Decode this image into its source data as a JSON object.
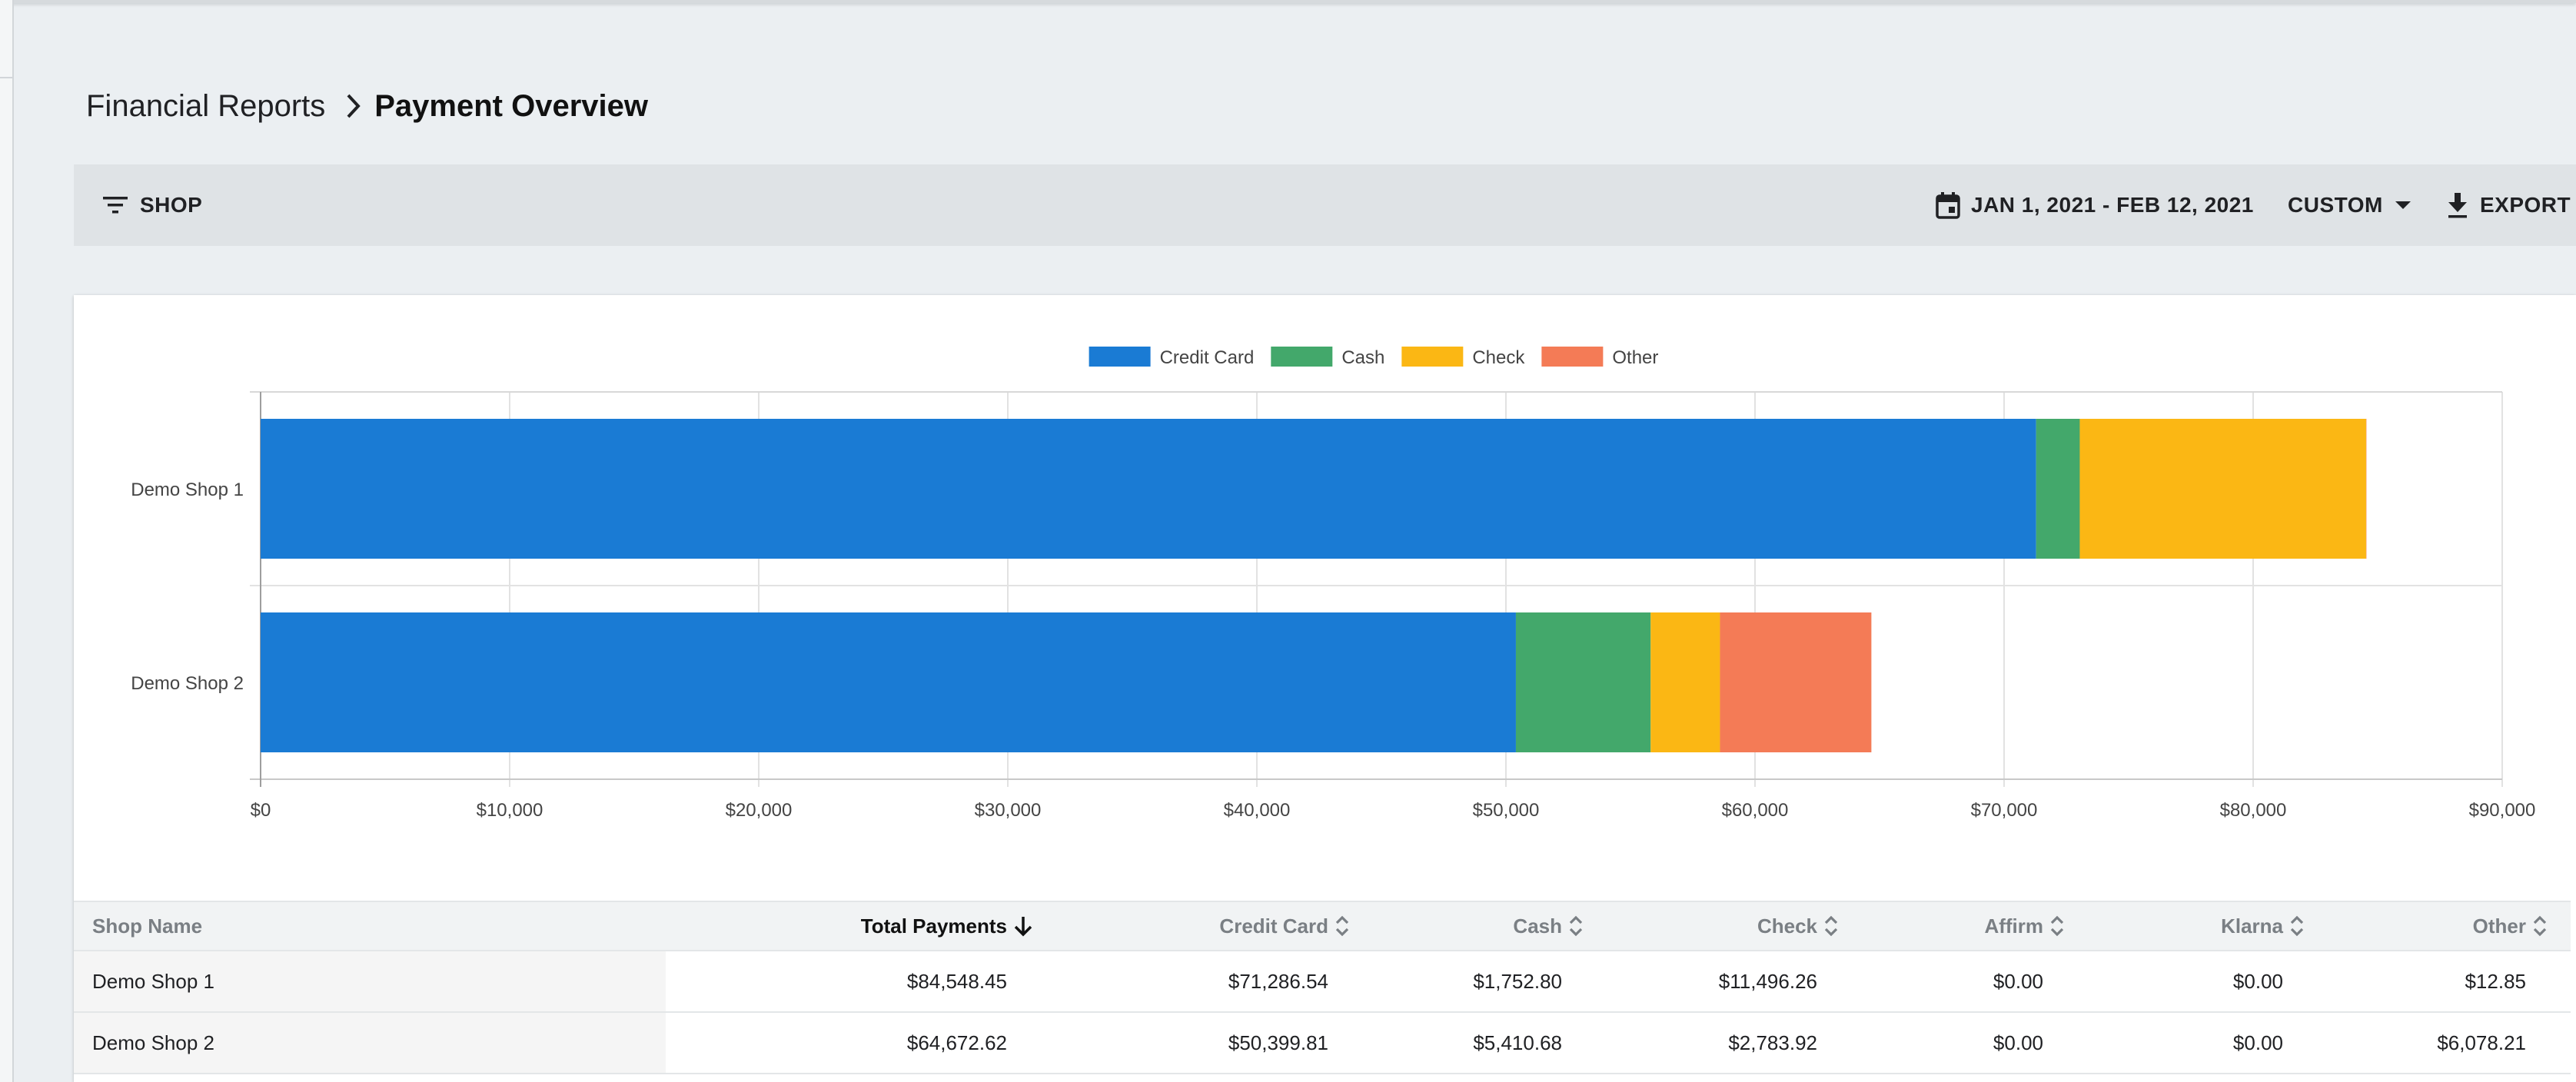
{
  "breadcrumb": {
    "parent": "Financial Reports",
    "current": "Payment Overview"
  },
  "toolbar": {
    "shop_label": "SHOP",
    "date_range": "JAN 1, 2021 - FEB 12, 2021",
    "range_preset": "CUSTOM",
    "export_label": "EXPORT"
  },
  "chart_data": {
    "type": "bar",
    "orientation": "horizontal",
    "stacked": true,
    "categories": [
      "Demo Shop 1",
      "Demo Shop 2"
    ],
    "series": [
      {
        "name": "Credit Card",
        "color": "#1a7bd4",
        "values": [
          71286.54,
          50399.81
        ]
      },
      {
        "name": "Cash",
        "color": "#43a86b",
        "values": [
          1752.8,
          5410.68
        ]
      },
      {
        "name": "Check",
        "color": "#fbb714",
        "values": [
          11496.26,
          2783.92
        ]
      },
      {
        "name": "Other",
        "color": "#f47b56",
        "values": [
          12.85,
          6078.21
        ]
      }
    ],
    "xlim": [
      0,
      90000
    ],
    "x_ticks": [
      0,
      10000,
      20000,
      30000,
      40000,
      50000,
      60000,
      70000,
      80000,
      90000
    ],
    "x_tick_labels": [
      "$0",
      "$10,000",
      "$20,000",
      "$30,000",
      "$40,000",
      "$50,000",
      "$60,000",
      "$70,000",
      "$80,000",
      "$90,000"
    ],
    "legend_position": "top-center",
    "grid": true
  },
  "table": {
    "columns": [
      {
        "label": "Shop Name",
        "sort": "none"
      },
      {
        "label": "Total Payments",
        "sort": "desc"
      },
      {
        "label": "Credit Card",
        "sort": "both"
      },
      {
        "label": "Cash",
        "sort": "both"
      },
      {
        "label": "Check",
        "sort": "both"
      },
      {
        "label": "Affirm",
        "sort": "both"
      },
      {
        "label": "Klarna",
        "sort": "both"
      },
      {
        "label": "Other",
        "sort": "both"
      }
    ],
    "rows": [
      [
        "Demo Shop 1",
        "$84,548.45",
        "$71,286.54",
        "$1,752.80",
        "$11,496.26",
        "$0.00",
        "$0.00",
        "$12.85"
      ],
      [
        "Demo Shop 2",
        "$64,672.62",
        "$50,399.81",
        "$5,410.68",
        "$2,783.92",
        "$0.00",
        "$0.00",
        "$6,078.21"
      ]
    ]
  }
}
